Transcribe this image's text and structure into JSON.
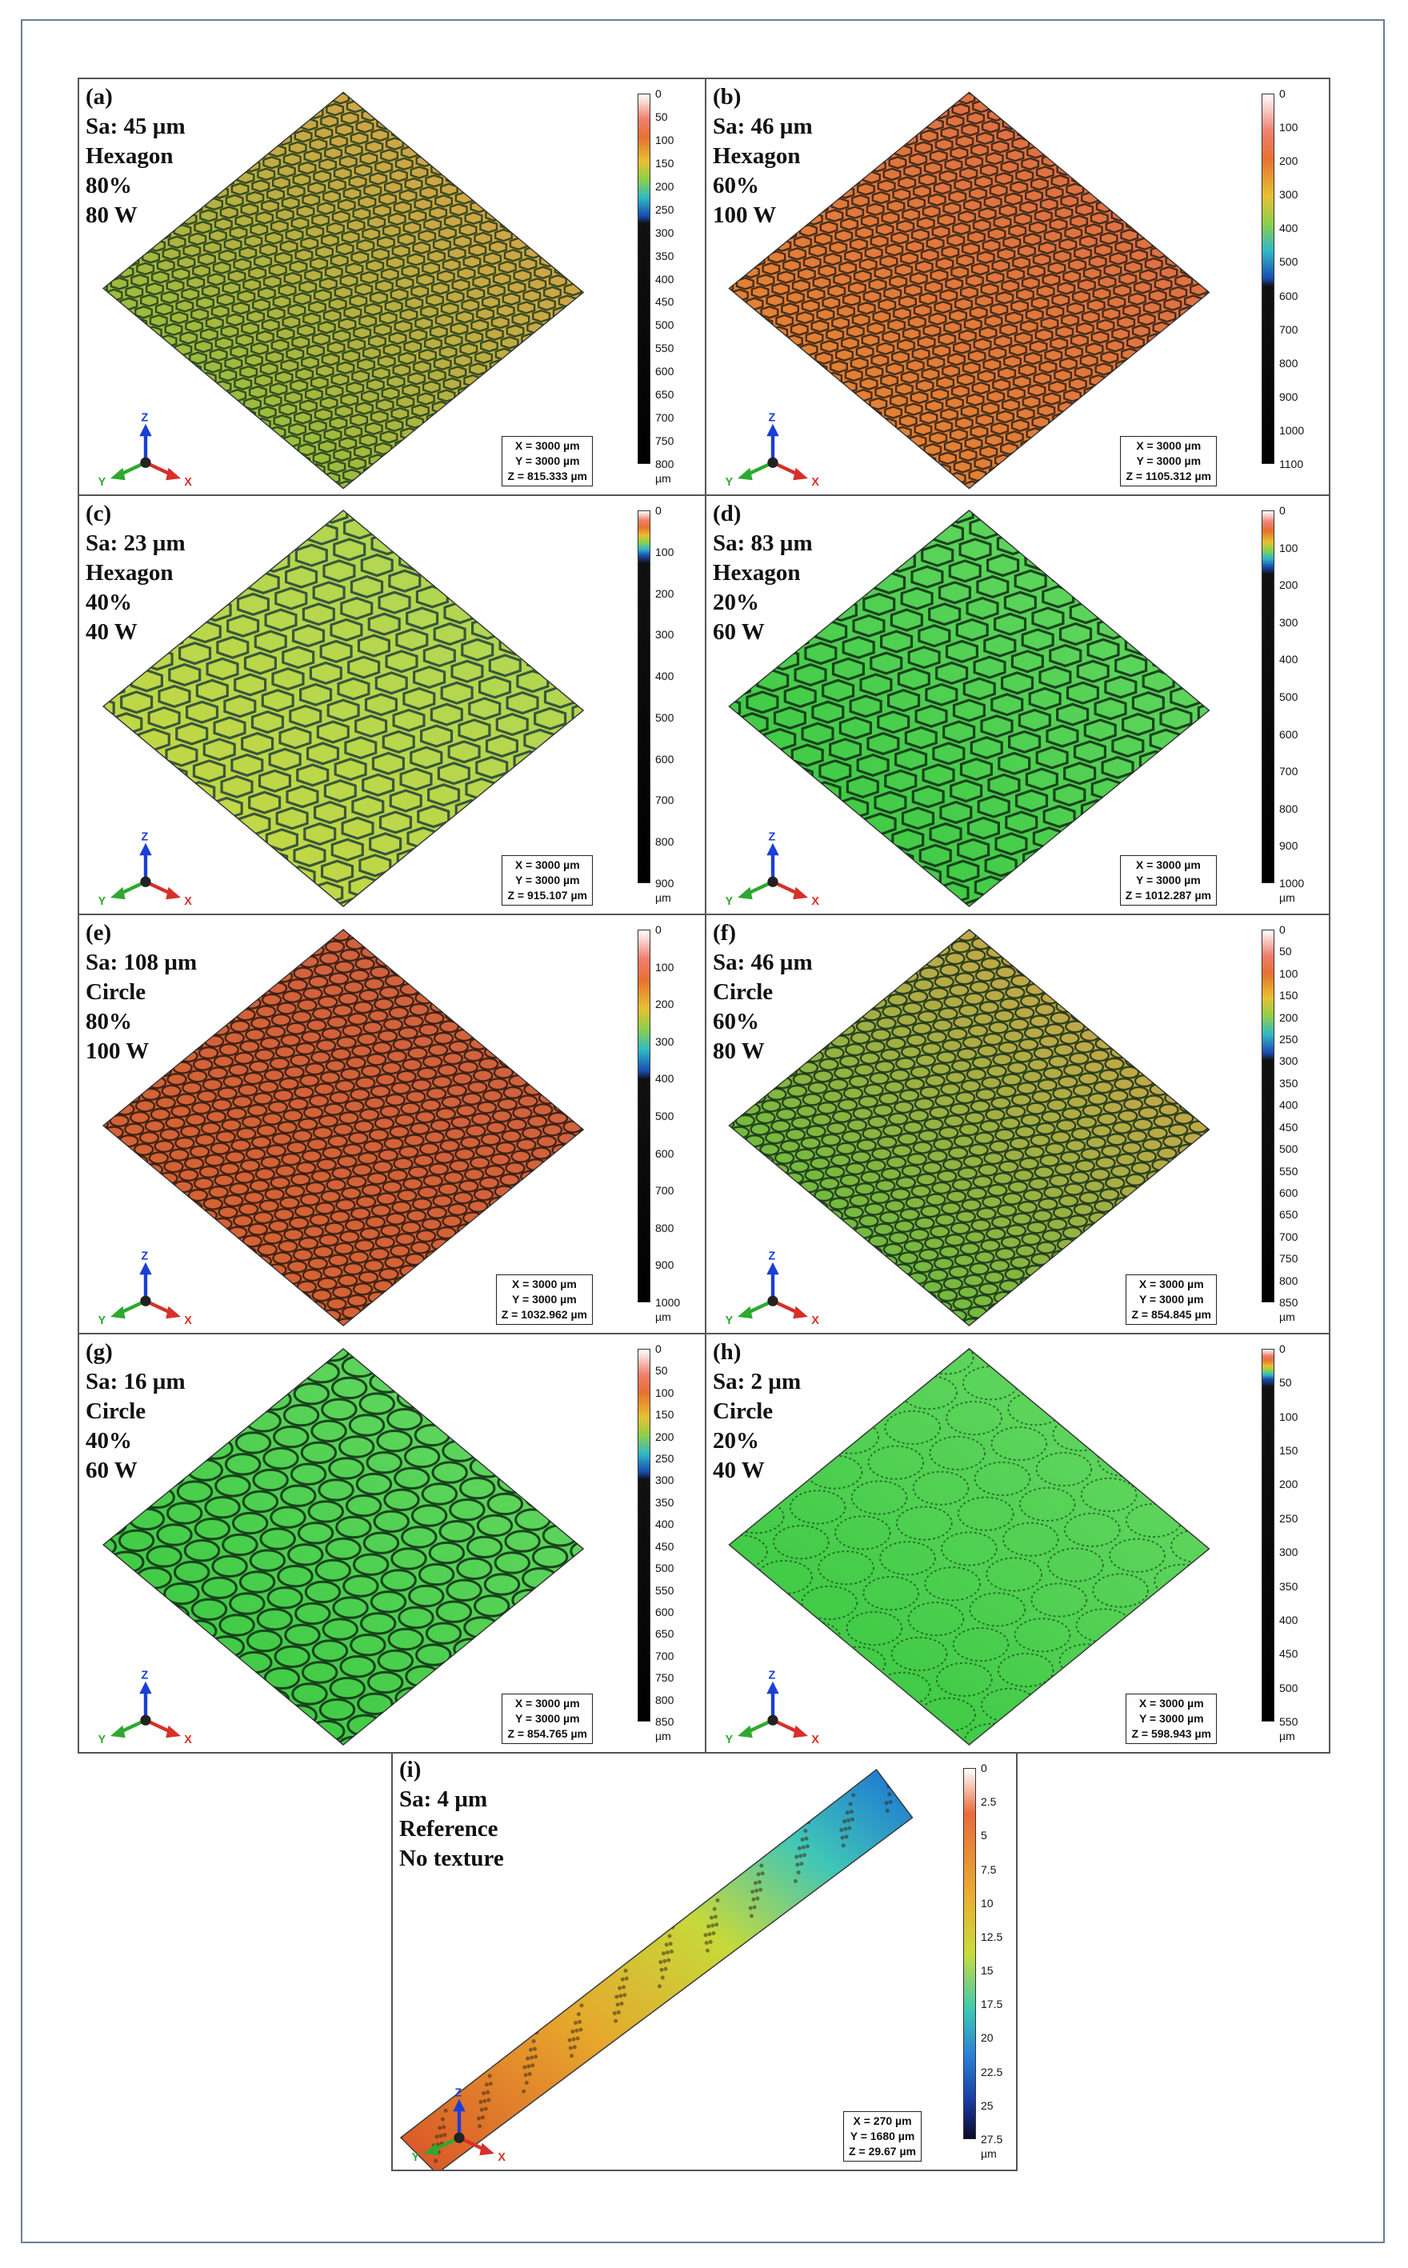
{
  "panels": [
    {
      "id": "a",
      "lines": [
        "(a)",
        "Sa: 45 µm",
        "Hexagon",
        "80%",
        "80 W"
      ],
      "palette": "orange-green",
      "pattern": "hexagon",
      "ticks": [
        "0",
        "50",
        "100",
        "150",
        "200",
        "250",
        "300",
        "350",
        "400",
        "450",
        "500",
        "550",
        "600",
        "650",
        "700",
        "750",
        "800"
      ],
      "unit": "µm",
      "dims": [
        "X = 3000 µm",
        "Y = 3000 µm",
        "Z = 815.333 µm"
      ]
    },
    {
      "id": "b",
      "lines": [
        "(b)",
        "Sa: 46 µm",
        "Hexagon",
        "60%",
        "100 W"
      ],
      "palette": "orange",
      "pattern": "hexagon",
      "ticks": [
        "0",
        "100",
        "200",
        "300",
        "400",
        "500",
        "600",
        "700",
        "800",
        "900",
        "1000",
        "1100"
      ],
      "unit": "",
      "dims": [
        "X = 3000 µm",
        "Y = 3000 µm",
        "Z = 1105.312 µm"
      ]
    },
    {
      "id": "c",
      "lines": [
        "(c)",
        "Sa: 23 µm",
        "Hexagon",
        "40%",
        "40 W"
      ],
      "palette": "yellow",
      "pattern": "hexagon",
      "ticks": [
        "0",
        "100",
        "200",
        "300",
        "400",
        "500",
        "600",
        "700",
        "800",
        "900"
      ],
      "unit": "µm",
      "dims": [
        "X = 3000 µm",
        "Y = 3000 µm",
        "Z = 915.107 µm"
      ]
    },
    {
      "id": "d",
      "lines": [
        "(d)",
        "Sa: 83 µm",
        "Hexagon",
        "20%",
        "60 W"
      ],
      "palette": "green",
      "pattern": "hexagon",
      "ticks": [
        "0",
        "100",
        "200",
        "300",
        "400",
        "500",
        "600",
        "700",
        "800",
        "900",
        "1000"
      ],
      "unit": "µm",
      "dims": [
        "X = 3000 µm",
        "Y = 3000 µm",
        "Z = 1012.287 µm"
      ]
    },
    {
      "id": "e",
      "lines": [
        "(e)",
        "Sa: 108 µm",
        "Circle",
        "80%",
        "100 W"
      ],
      "palette": "red",
      "pattern": "circle",
      "ticks": [
        "0",
        "100",
        "200",
        "300",
        "400",
        "500",
        "600",
        "700",
        "800",
        "900",
        "1000"
      ],
      "unit": "µm",
      "dims": [
        "X = 3000 µm",
        "Y = 3000 µm",
        "Z = 1032.962 µm"
      ]
    },
    {
      "id": "f",
      "lines": [
        "(f)",
        "Sa: 46 µm",
        "Circle",
        "60%",
        "80 W"
      ],
      "palette": "green-orange",
      "pattern": "circle",
      "ticks": [
        "0",
        "50",
        "100",
        "150",
        "200",
        "250",
        "300",
        "350",
        "400",
        "450",
        "500",
        "550",
        "600",
        "650",
        "700",
        "750",
        "800",
        "850"
      ],
      "unit": "µm",
      "dims": [
        "X = 3000 µm",
        "Y = 3000 µm",
        "Z = 854.845 µm"
      ]
    },
    {
      "id": "g",
      "lines": [
        "(g)",
        "Sa: 16 µm",
        "Circle",
        "40%",
        "60 W"
      ],
      "palette": "green",
      "pattern": "circle",
      "ticks": [
        "0",
        "50",
        "100",
        "150",
        "200",
        "250",
        "300",
        "350",
        "400",
        "450",
        "500",
        "550",
        "600",
        "650",
        "700",
        "750",
        "800",
        "850"
      ],
      "unit": "µm",
      "dims": [
        "X = 3000 µm",
        "Y = 3000 µm",
        "Z = 854.765 µm"
      ]
    },
    {
      "id": "h",
      "lines": [
        "(h)",
        "Sa: 2 µm",
        "Circle",
        "20%",
        "40 W"
      ],
      "palette": "green",
      "pattern": "circle-sparse",
      "ticks": [
        "0",
        "50",
        "100",
        "150",
        "200",
        "250",
        "300",
        "350",
        "400",
        "450",
        "500",
        "550"
      ],
      "unit": "µm",
      "dims": [
        "X = 3000 µm",
        "Y = 3000 µm",
        "Z = 598.943 µm"
      ]
    },
    {
      "id": "i",
      "lines": [
        "(i)",
        "Sa: 4 µm",
        "Reference",
        "No texture"
      ],
      "palette": "gradient",
      "pattern": "strip",
      "ticks": [
        "0",
        "2.5",
        "5",
        "7.5",
        "10",
        "12.5",
        "15",
        "17.5",
        "20",
        "22.5",
        "25",
        "27.5"
      ],
      "unit": "µm",
      "dims": [
        "X = 270 µm",
        "Y = 1680 µm",
        "Z = 29.67 µm"
      ]
    }
  ],
  "axis_labels": {
    "z": "Z",
    "y": "Y",
    "x": "X"
  },
  "colors": {
    "frame": "#6d7f93",
    "green": "#2ecc40",
    "orange": "#e8641e",
    "yellow": "#d6e03a",
    "red": "#d9512a",
    "blue": "#1a6fd6"
  }
}
